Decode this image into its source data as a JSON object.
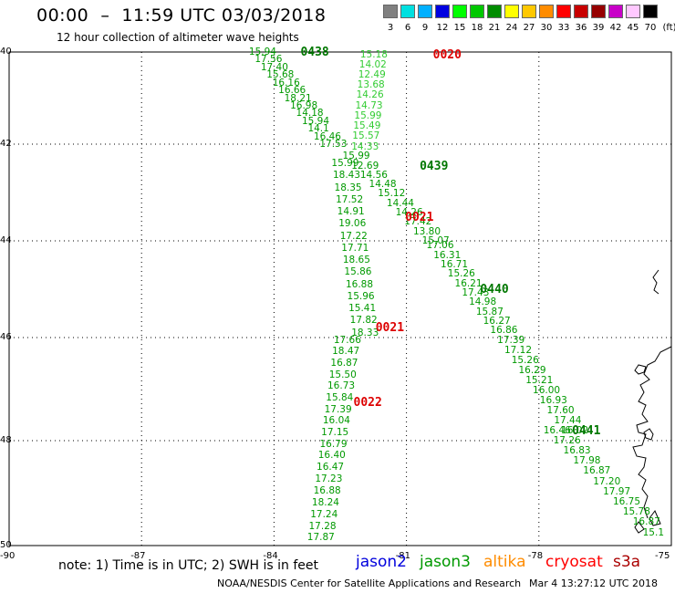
{
  "header": {
    "title": "00:00  –  11:59 UTC 03/03/2018",
    "subtitle": "12 hour collection of altimeter wave heights"
  },
  "scale": {
    "unit_label": "(ft)",
    "colors": [
      "#808080",
      "#00e0e0",
      "#00b0ff",
      "#0000e0",
      "#00ff00",
      "#00c800",
      "#008c00",
      "#ffff00",
      "#ffc800",
      "#ff8c00",
      "#ff0000",
      "#c80000",
      "#960000",
      "#c800c8",
      "#ffc8ff",
      "#000000"
    ],
    "labels": [
      "3",
      "6",
      "9",
      "12",
      "15",
      "18",
      "21",
      "24",
      "27",
      "30",
      "33",
      "36",
      "39",
      "42",
      "45",
      "70"
    ]
  },
  "axes": {
    "lat_labels": [
      "40",
      "42",
      "44",
      "46",
      "48",
      "50"
    ],
    "lon_labels": [
      "-90",
      "-87",
      "-84",
      "-81",
      "-78",
      "-75"
    ]
  },
  "footer": {
    "note": "note: 1) Time is in UTC; 2) SWH is in feet",
    "credit": "NOAA/NESDIS Center for Satellite Applications and Research",
    "timestamp": "Mar  4 13:27:12 UTC 2018"
  },
  "satellites": [
    {
      "name": "jason2",
      "color": "#0000dd"
    },
    {
      "name": "jason3",
      "color": "#009900"
    },
    {
      "name": "altika",
      "color": "#ff8c00"
    },
    {
      "name": "cryosat",
      "color": "#ff0000"
    },
    {
      "name": "s3a",
      "color": "#aa0000"
    }
  ],
  "time_labels": [
    {
      "text": "0438",
      "color": "#007700",
      "lat": -40.0,
      "lon": -83.4
    },
    {
      "text": "0020",
      "color": "#dd0000",
      "lat": -40.05,
      "lon": -80.4
    },
    {
      "text": "0439",
      "color": "#007700",
      "lat": -42.45,
      "lon": -80.7
    },
    {
      "text": "0021",
      "color": "#dd0000",
      "lat": -43.5,
      "lon": -81.03
    },
    {
      "text": "0440",
      "color": "#007700",
      "lat": -45.0,
      "lon": -79.33
    },
    {
      "text": "0021",
      "color": "#dd0000",
      "lat": -45.8,
      "lon": -81.7
    },
    {
      "text": "0022",
      "color": "#dd0000",
      "lat": -47.25,
      "lon": -82.2
    },
    {
      "text": "0441",
      "color": "#007700",
      "lat": -47.8,
      "lon": -77.25
    }
  ],
  "tracks": [
    {
      "id": "track-0438",
      "color": "#009900",
      "start": [
        -40.0,
        -84.32
      ],
      "end": [
        -42.0,
        -82.72
      ],
      "values": [
        "15.94",
        "17.56",
        "17.40",
        "15.68",
        "16.16",
        "16.66",
        "18.21",
        "16.98",
        "14.18",
        "15.94",
        "14.1",
        "16.46",
        "17.53"
      ]
    },
    {
      "id": "track-0020",
      "color": "#33cc33",
      "start": [
        -40.05,
        -81.8
      ],
      "end": [
        -42.05,
        -82.0
      ],
      "values": [
        "15.18",
        "14.02",
        "12.49",
        "13.68",
        "14.26",
        "14.73",
        "15.99",
        "15.49",
        "15.57",
        "14.33"
      ]
    },
    {
      "id": "track-0439",
      "color": "#009900",
      "start": [
        -42.25,
        -82.2
      ],
      "end": [
        -44.0,
        -80.4
      ],
      "values": [
        "15.99",
        "12.69",
        "14.56",
        "14.48",
        "15.12",
        "14.44",
        "14.26",
        "17.42",
        "13.80",
        "15.07"
      ]
    },
    {
      "id": "track-0021a",
      "color": "#009900",
      "start": [
        -42.4,
        -82.45
      ],
      "end": [
        -45.9,
        -82.0
      ],
      "values": [
        "15.99",
        "18.43",
        "18.35",
        "17.52",
        "14.91",
        "19.06",
        "17.22",
        "17.71",
        "18.65",
        "15.86",
        "16.88",
        "15.96",
        "15.41",
        "17.82",
        "18.33"
      ]
    },
    {
      "id": "track-0440",
      "color": "#009900",
      "start": [
        -44.1,
        -80.3
      ],
      "end": [
        -47.8,
        -77.25
      ],
      "values": [
        "17.06",
        "16.31",
        "16.71",
        "15.26",
        "16.21",
        "17.43",
        "14.98",
        "15.87",
        "16.27",
        "16.86",
        "17.39",
        "17.12",
        "15.26",
        "16.29",
        "15.21",
        "16.00",
        "16.93",
        "17.60",
        "17.44",
        "16.02"
      ]
    },
    {
      "id": "track-0021b",
      "color": "#009900",
      "start": [
        -46.05,
        -82.4
      ],
      "end": [
        -49.85,
        -83.0
      ],
      "values": [
        "17.66",
        "18.47",
        "16.87",
        "15.50",
        "16.73",
        "15.84",
        "17.39",
        "16.04",
        "17.15",
        "16.79",
        "16.40",
        "16.47",
        "17.23",
        "16.88",
        "18.24",
        "17.24",
        "17.28",
        "17.87"
      ]
    },
    {
      "id": "track-0441",
      "color": "#009900",
      "start": [
        -47.8,
        -77.65
      ],
      "end": [
        -49.75,
        -75.4
      ],
      "values": [
        "16.46",
        "17.26",
        "16.83",
        "17.98",
        "16.87",
        "17.20",
        "17.97",
        "16.75",
        "15.78",
        "16.87",
        "15.1"
      ]
    }
  ]
}
